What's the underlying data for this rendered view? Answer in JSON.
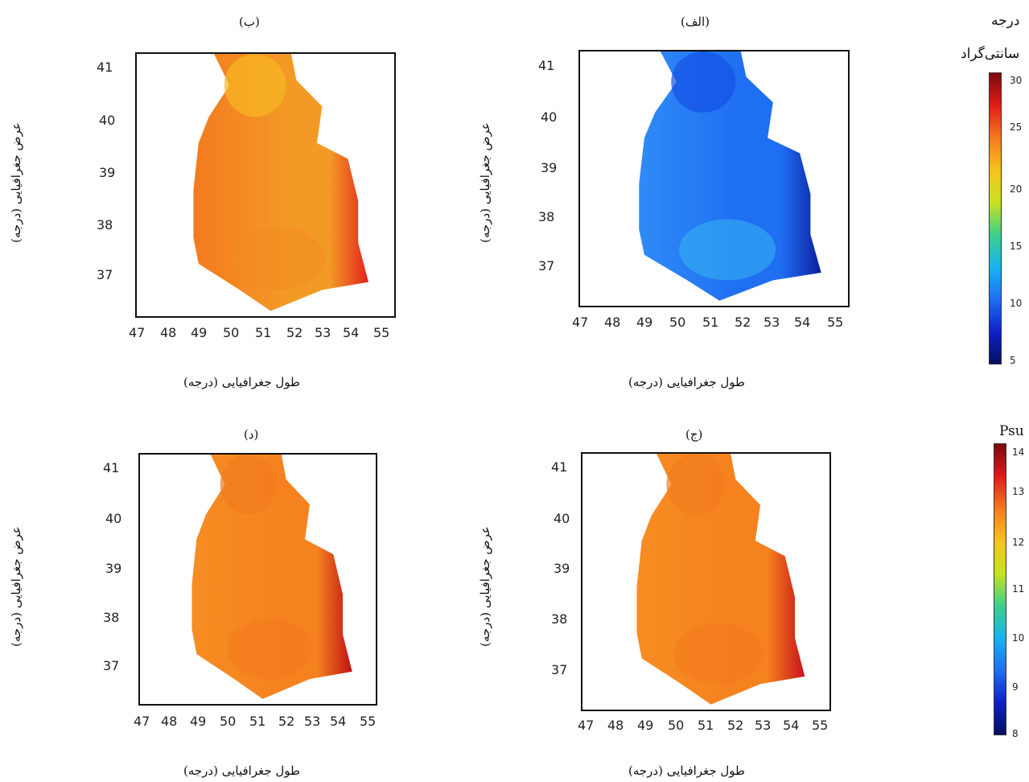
{
  "panels": [
    {
      "id": "b",
      "label": "(ب)",
      "xlabel": "طول جغرافیایی (درجه)",
      "ylabel": "عرض جغرافیایی (درجه)",
      "x_ticks": [
        "47",
        "48",
        "49",
        "50",
        "51",
        "52",
        "53",
        "54",
        "55"
      ],
      "y_ticks": [
        "41",
        "40",
        "39",
        "38",
        "37"
      ],
      "field": "temperature",
      "colors": {
        "base": "#f39a26",
        "north": "#f6b823",
        "west": "#f47a1f",
        "east": "#e4231d",
        "south": "#f18a22"
      }
    },
    {
      "id": "alef",
      "label": "(الف)",
      "xlabel": "طول جغرافیایی (درجه)",
      "ylabel": "عرض جغرافیایی (درجه)",
      "x_ticks": [
        "47",
        "48",
        "49",
        "50",
        "51",
        "52",
        "53",
        "54",
        "55"
      ],
      "y_ticks": [
        "41",
        "40",
        "39",
        "38",
        "37"
      ],
      "field": "temperature",
      "colors": {
        "base": "#1f6ff2",
        "north": "#1450e6",
        "west": "#2f8bf7",
        "east": "#0b1e9e",
        "south": "#36b6f2"
      }
    },
    {
      "id": "dal",
      "label": "(د)",
      "xlabel": "طول جغرافیایی (درجه)",
      "ylabel": "عرض جغرافیایی (درجه)",
      "x_ticks": [
        "47",
        "48",
        "49",
        "50",
        "51",
        "52",
        "53",
        "54",
        "55"
      ],
      "y_ticks": [
        "41",
        "40",
        "39",
        "38",
        "37"
      ],
      "field": "salinity",
      "colors": {
        "base": "#f5821f",
        "north": "#f47c1f",
        "west": "#f78d22",
        "east": "#c20f12",
        "south": "#f47a1f"
      }
    },
    {
      "id": "jim",
      "label": "(ج)",
      "xlabel": "طول جغرافیایی (درجه)",
      "ylabel": "عرض جغرافیایی (درجه)",
      "x_ticks": [
        "47",
        "48",
        "49",
        "50",
        "51",
        "52",
        "53",
        "54",
        "55"
      ],
      "y_ticks": [
        "41",
        "40",
        "39",
        "38",
        "37"
      ],
      "field": "salinity",
      "colors": {
        "base": "#f5821f",
        "north": "#f47c1f",
        "west": "#f78d22",
        "east": "#c8101a",
        "south": "#f47a1f"
      }
    }
  ],
  "colorbars": [
    {
      "title_line1": "درجه",
      "title_line2": "سانتی‌گراد",
      "ticks": [
        "30",
        "25",
        "20",
        "15",
        "10",
        "5"
      ],
      "colors": [
        "#7a0a0a",
        "#e21a1a",
        "#f47a1f",
        "#f6c21f",
        "#c8e21f",
        "#3dd08a",
        "#18b4ee",
        "#1f6ff2",
        "#0d22c8",
        "#05105e"
      ]
    },
    {
      "title_line1": "Psu",
      "ticks": [
        "14",
        "13",
        "12",
        "11",
        "10",
        "9",
        "8"
      ],
      "colors": [
        "#7a0a0a",
        "#e21a1a",
        "#f47a1f",
        "#f6c21f",
        "#c8e21f",
        "#3dd08a",
        "#18b4ee",
        "#1f6ff2",
        "#0d22c8",
        "#05105e"
      ]
    }
  ]
}
